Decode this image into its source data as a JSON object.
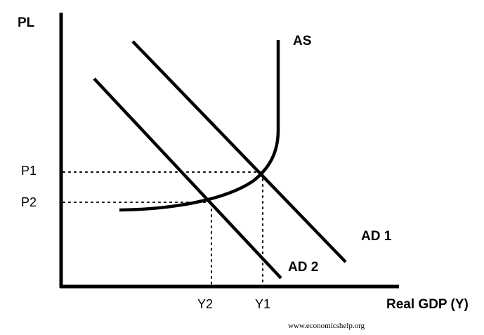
{
  "axes": {
    "y_label": "PL",
    "x_label": "Real GDP (Y)"
  },
  "curves": {
    "as_label": "AS",
    "ad1_label": "AD 1",
    "ad2_label": "AD 2"
  },
  "price_levels": {
    "p1": "P1",
    "p2": "P2"
  },
  "output_levels": {
    "y1": "Y1",
    "y2": "Y2"
  },
  "credit": "www.economicshelp.org",
  "colors": {
    "ink": "#000000",
    "background": "#ffffff"
  }
}
